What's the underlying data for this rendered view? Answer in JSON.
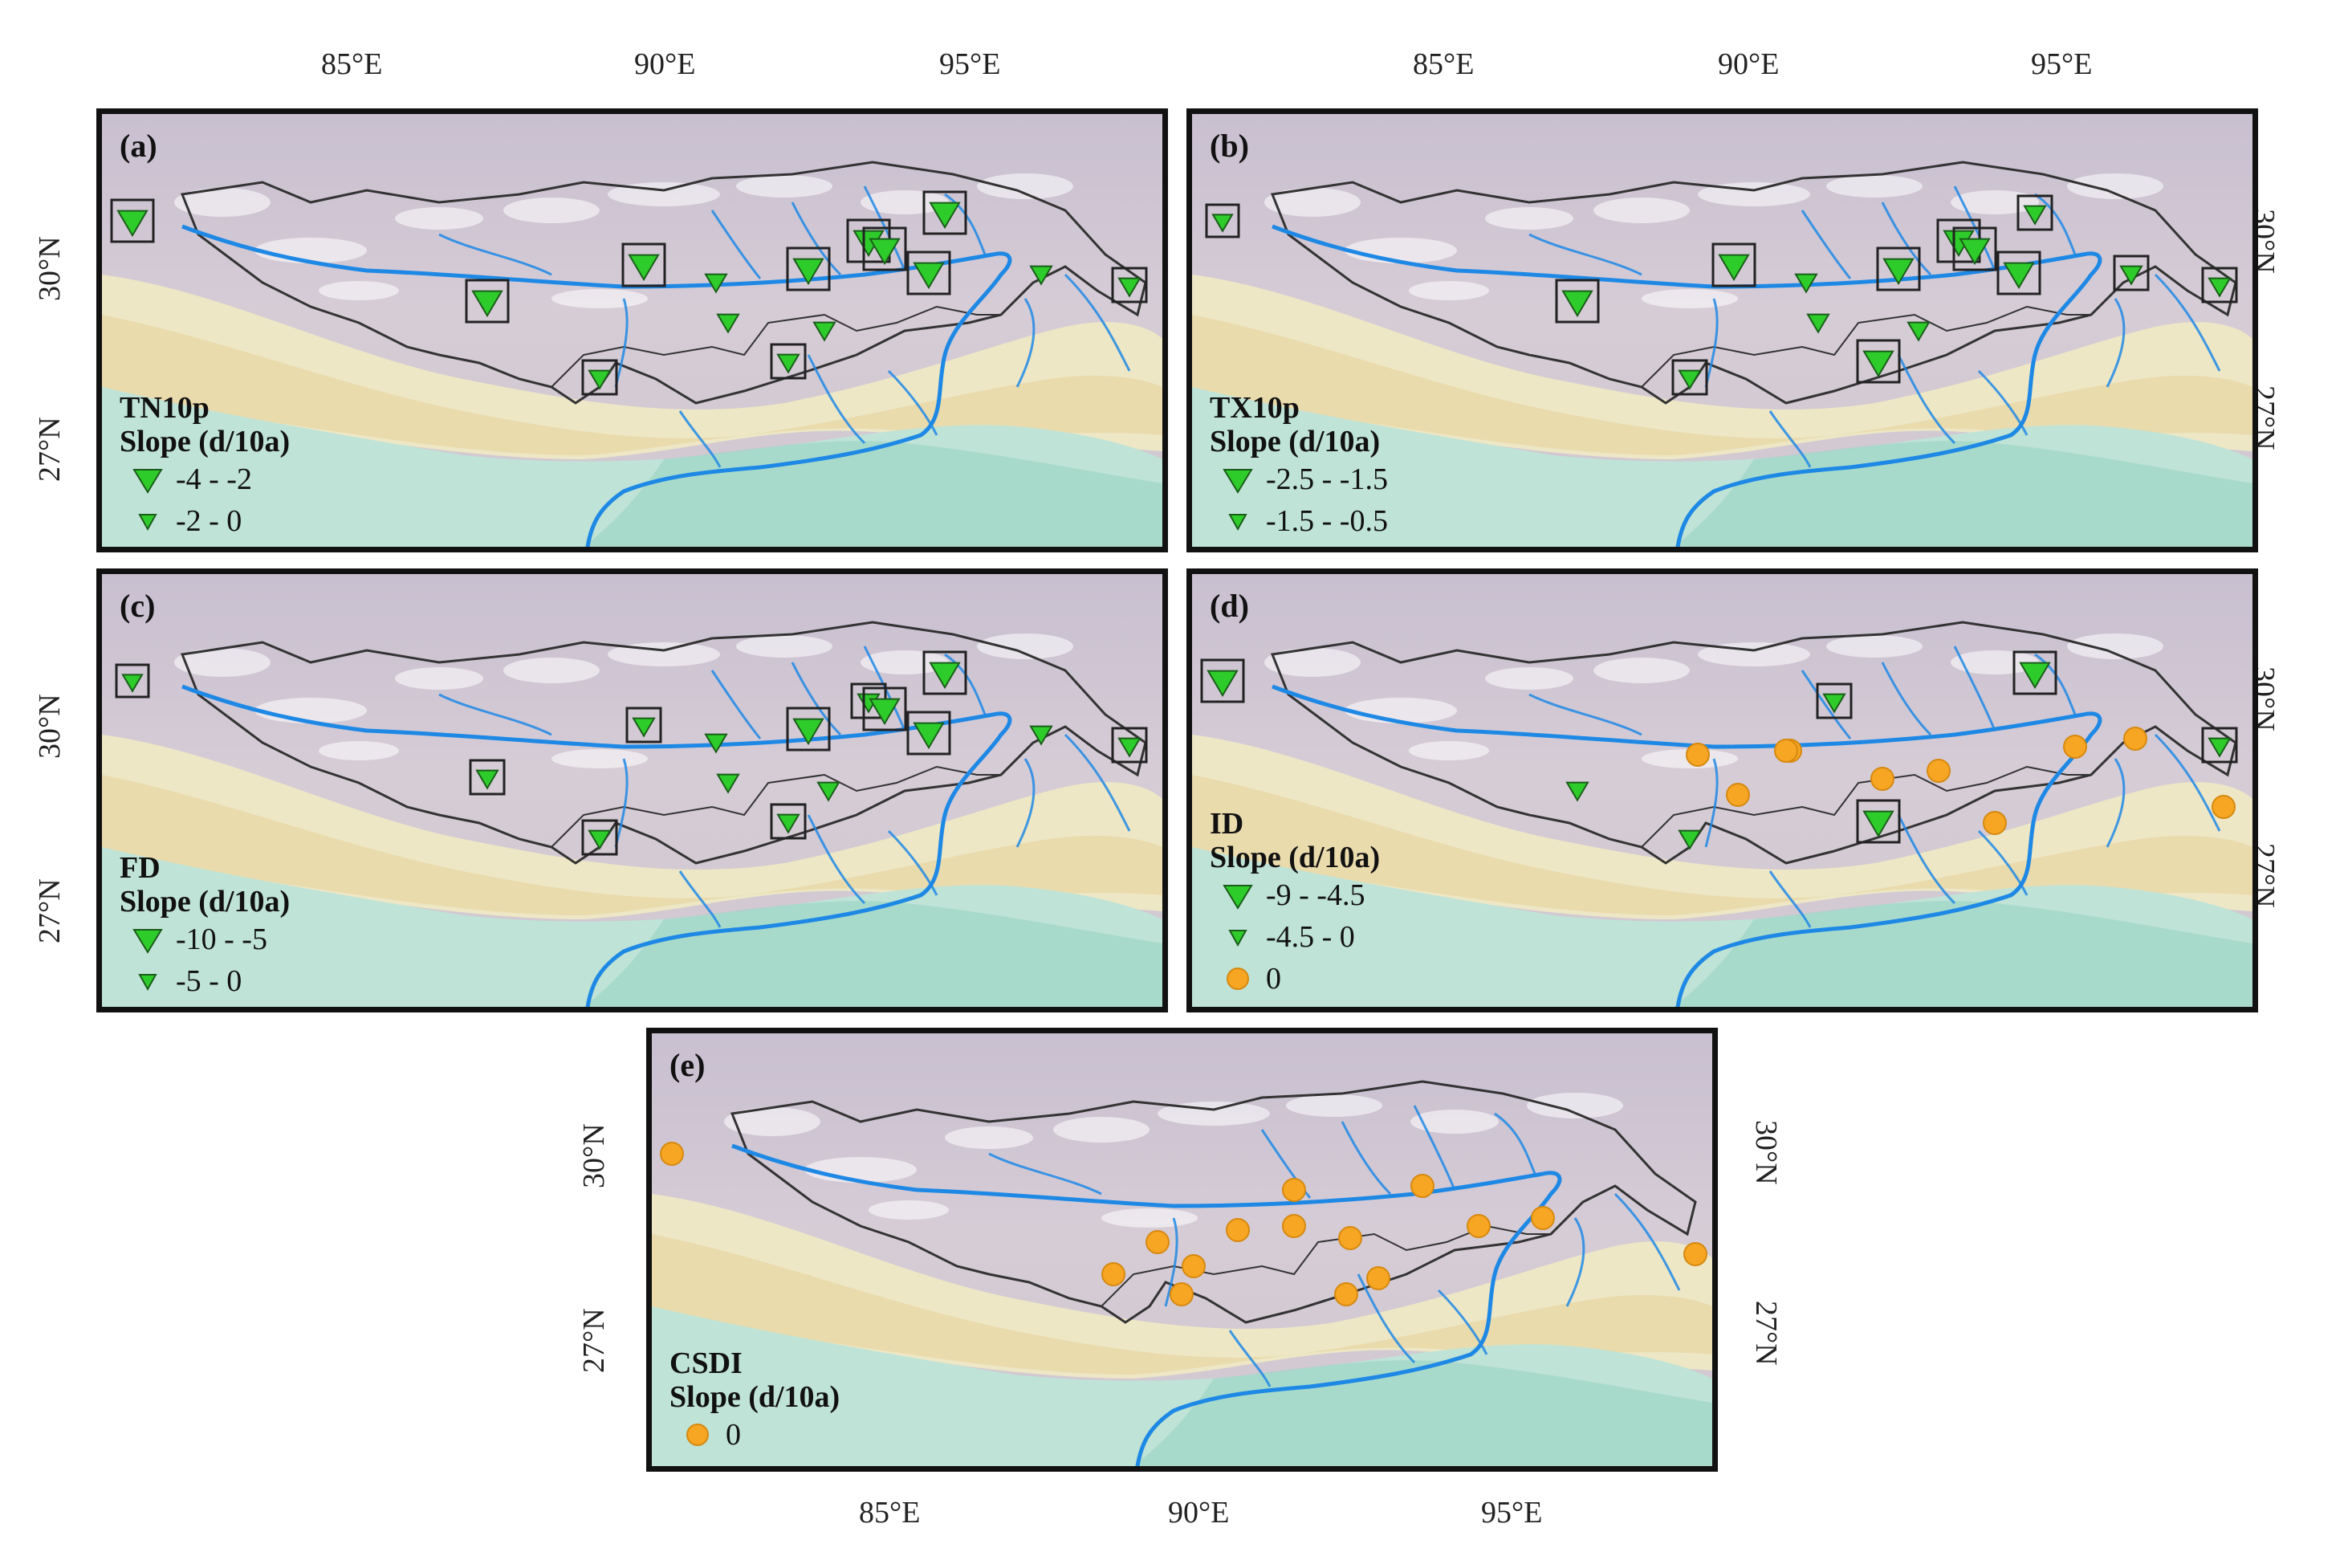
{
  "figure": {
    "lon_ticks": [
      "85°E",
      "90°E",
      "95°E"
    ],
    "lat_ticks": [
      "30°N",
      "27°N"
    ]
  },
  "colors": {
    "station_green": "#2ecc2a",
    "station_orange": "#f6a623",
    "river": "#1e88e5",
    "basin_outline": "#333333",
    "frame": "#111111"
  },
  "symbols": {
    "large_triangle": "down-triangle-large",
    "small_triangle": "down-triangle-small",
    "circle": "orange-circle",
    "significance_box": "square-outline"
  },
  "panels": [
    {
      "label": "(a)",
      "index_name": "TN10p",
      "slope_label": "Slope (d/10a)",
      "legend": [
        {
          "symbol": "large_triangle",
          "text": "-4 - -2"
        },
        {
          "symbol": "small_triangle",
          "text": "-2 - 0"
        }
      ]
    },
    {
      "label": "(b)",
      "index_name": "TX10p",
      "slope_label": "Slope (d/10a)",
      "legend": [
        {
          "symbol": "large_triangle",
          "text": "-2.5 - -1.5"
        },
        {
          "symbol": "small_triangle",
          "text": "-1.5 - -0.5"
        }
      ]
    },
    {
      "label": "(c)",
      "index_name": "FD",
      "slope_label": "Slope (d/10a)",
      "legend": [
        {
          "symbol": "large_triangle",
          "text": "-10 - -5"
        },
        {
          "symbol": "small_triangle",
          "text": "-5 - 0"
        }
      ]
    },
    {
      "label": "(d)",
      "index_name": "ID",
      "slope_label": "Slope (d/10a)",
      "legend": [
        {
          "symbol": "large_triangle",
          "text": "-9 - -4.5"
        },
        {
          "symbol": "small_triangle",
          "text": "-4.5 - 0"
        },
        {
          "symbol": "circle",
          "text": "0"
        }
      ]
    },
    {
      "label": "(e)",
      "index_name": "CSDI",
      "slope_label": "Slope (d/10a)",
      "legend": [
        {
          "symbol": "circle",
          "text": "0"
        }
      ]
    }
  ]
}
